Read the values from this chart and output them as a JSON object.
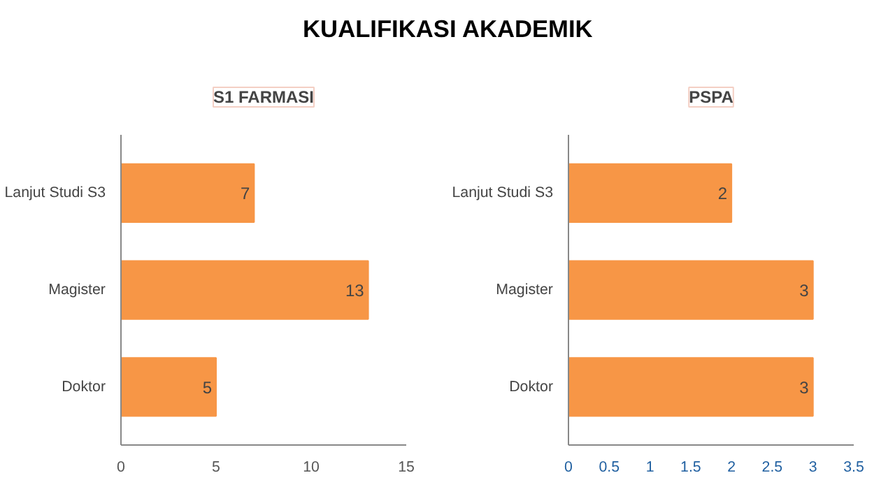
{
  "chart_data": [
    {
      "type": "other",
      "title": "KUALIFIKASI AKADEMIK"
    },
    {
      "type": "bar",
      "orientation": "horizontal",
      "title": "S1 FARMASI",
      "categories": [
        "Lanjut Studi S3",
        "Magister",
        "Doktor"
      ],
      "values": [
        7,
        13,
        5
      ],
      "color": "#f79646",
      "xlim": [
        0,
        15
      ],
      "xticks": [
        0,
        5,
        10,
        15
      ],
      "data_labels": true,
      "grid": false
    },
    {
      "type": "bar",
      "orientation": "horizontal",
      "title": "PSPA",
      "categories": [
        "Lanjut Studi S3",
        "Magister",
        "Doktor"
      ],
      "values": [
        2,
        3,
        3
      ],
      "color": "#f79646",
      "xlim": [
        0,
        3.5
      ],
      "xticks": [
        0,
        0.5,
        1,
        1.5,
        2,
        2.5,
        3,
        3.5
      ],
      "data_labels": true,
      "grid": false
    }
  ]
}
